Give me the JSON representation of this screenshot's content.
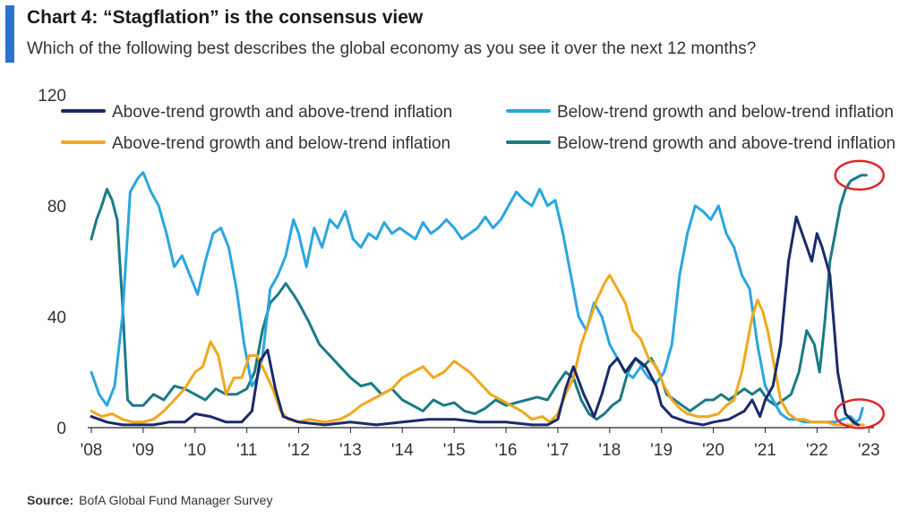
{
  "header": {
    "title": "Chart 4: “Stagflation” is the consensus view",
    "subtitle": "Which of the following best describes the global economy as you see it over the next 12 months?",
    "accent_color": "#2e6fd0"
  },
  "source": {
    "label": "Source:",
    "text": "BofA Global Fund Manager Survey"
  },
  "chart_data": {
    "type": "line",
    "title": "",
    "xlabel": "",
    "ylabel": "",
    "xlim": [
      2008.0,
      2023.1
    ],
    "ylim": [
      0,
      120
    ],
    "y_ticks": [
      0,
      40,
      80,
      120
    ],
    "x_ticks": [
      2008,
      2009,
      2010,
      2011,
      2012,
      2013,
      2014,
      2015,
      2016,
      2017,
      2018,
      2019,
      2020,
      2021,
      2022,
      2023
    ],
    "x_tick_labels": [
      "'08",
      "'09",
      "'10",
      "'11",
      "'12",
      "'13",
      "'14",
      "'15",
      "'16",
      "'17",
      "'18",
      "'19",
      "'20",
      "'21",
      "'22",
      "'23"
    ],
    "grid": false,
    "legend_position": "top",
    "annotations": [
      {
        "type": "circle",
        "x": 2022.75,
        "y": 91
      },
      {
        "type": "circle",
        "x": 2022.75,
        "y": 5
      }
    ],
    "series": [
      {
        "name": "Above-trend growth and above-trend inflation",
        "color": "#1b2a6b",
        "x": [
          2008.0,
          2008.3,
          2008.6,
          2008.9,
          2009.2,
          2009.5,
          2009.8,
          2010.0,
          2010.3,
          2010.6,
          2010.9,
          2011.1,
          2011.25,
          2011.4,
          2011.55,
          2011.7,
          2012.0,
          2012.5,
          2013.0,
          2013.5,
          2014.0,
          2014.5,
          2015.0,
          2015.5,
          2016.0,
          2016.5,
          2016.8,
          2017.0,
          2017.15,
          2017.3,
          2017.5,
          2017.7,
          2017.85,
          2018.0,
          2018.15,
          2018.3,
          2018.5,
          2018.7,
          2018.9,
          2019.0,
          2019.2,
          2019.5,
          2019.8,
          2020.0,
          2020.3,
          2020.6,
          2020.75,
          2020.9,
          2021.0,
          2021.15,
          2021.3,
          2021.45,
          2021.6,
          2021.75,
          2021.9,
          2022.0,
          2022.1,
          2022.25,
          2022.4,
          2022.55,
          2022.7,
          2022.8
        ],
        "values": [
          4,
          2,
          1,
          1,
          1,
          2,
          2,
          5,
          4,
          2,
          2,
          6,
          24,
          28,
          14,
          4,
          2,
          1,
          2,
          1,
          2,
          3,
          3,
          2,
          2,
          1,
          1,
          3,
          14,
          22,
          12,
          4,
          12,
          22,
          25,
          20,
          25,
          22,
          15,
          8,
          4,
          2,
          1,
          2,
          3,
          6,
          10,
          4,
          10,
          15,
          30,
          60,
          76,
          68,
          60,
          70,
          65,
          55,
          20,
          5,
          2,
          1
        ]
      },
      {
        "name": "Below-trend growth and below-trend inflation",
        "color": "#2aa6e0",
        "x": [
          2008.0,
          2008.15,
          2008.3,
          2008.45,
          2008.6,
          2008.75,
          2008.9,
          2009.0,
          2009.15,
          2009.3,
          2009.45,
          2009.6,
          2009.75,
          2009.9,
          2010.05,
          2010.2,
          2010.35,
          2010.5,
          2010.65,
          2010.8,
          2010.95,
          2011.1,
          2011.2,
          2011.3,
          2011.45,
          2011.6,
          2011.75,
          2011.9,
          2012.0,
          2012.15,
          2012.3,
          2012.45,
          2012.6,
          2012.75,
          2012.9,
          2013.05,
          2013.2,
          2013.35,
          2013.5,
          2013.65,
          2013.8,
          2013.95,
          2014.1,
          2014.25,
          2014.4,
          2014.55,
          2014.7,
          2014.85,
          2015.0,
          2015.15,
          2015.3,
          2015.45,
          2015.6,
          2015.75,
          2015.9,
          2016.05,
          2016.2,
          2016.35,
          2016.5,
          2016.65,
          2016.8,
          2016.95,
          2017.1,
          2017.25,
          2017.4,
          2017.55,
          2017.7,
          2017.85,
          2018.0,
          2018.15,
          2018.3,
          2018.45,
          2018.6,
          2018.75,
          2018.9,
          2019.05,
          2019.2,
          2019.35,
          2019.5,
          2019.65,
          2019.8,
          2019.95,
          2020.1,
          2020.25,
          2020.4,
          2020.55,
          2020.7,
          2020.85,
          2021.0,
          2021.15,
          2021.3,
          2021.45,
          2021.6,
          2021.75,
          2021.9,
          2022.05,
          2022.2,
          2022.35,
          2022.5,
          2022.65,
          2022.75,
          2022.82,
          2022.88
        ],
        "values": [
          20,
          12,
          8,
          15,
          40,
          85,
          90,
          92,
          85,
          80,
          70,
          58,
          62,
          55,
          48,
          60,
          70,
          72,
          65,
          50,
          30,
          15,
          18,
          25,
          50,
          55,
          62,
          75,
          70,
          58,
          72,
          65,
          75,
          72,
          78,
          68,
          65,
          70,
          68,
          74,
          70,
          72,
          70,
          68,
          74,
          70,
          72,
          75,
          72,
          68,
          70,
          72,
          76,
          72,
          75,
          80,
          85,
          82,
          80,
          86,
          80,
          82,
          70,
          55,
          40,
          35,
          45,
          40,
          30,
          25,
          20,
          18,
          22,
          18,
          16,
          20,
          30,
          55,
          70,
          80,
          78,
          75,
          80,
          70,
          65,
          55,
          50,
          30,
          15,
          10,
          5,
          3,
          3,
          2,
          2,
          2,
          2,
          2,
          3,
          4,
          2,
          3,
          7
        ]
      },
      {
        "name": "Above-trend growth and below-trend inflation",
        "color": "#f0a81c",
        "x": [
          2008.0,
          2008.2,
          2008.4,
          2008.6,
          2008.8,
          2009.0,
          2009.2,
          2009.4,
          2009.6,
          2009.8,
          2010.0,
          2010.15,
          2010.3,
          2010.45,
          2010.6,
          2010.75,
          2010.9,
          2011.05,
          2011.2,
          2011.35,
          2011.5,
          2011.65,
          2011.8,
          2012.0,
          2012.2,
          2012.5,
          2012.8,
          2013.0,
          2013.2,
          2013.4,
          2013.6,
          2013.8,
          2014.0,
          2014.2,
          2014.4,
          2014.6,
          2014.8,
          2015.0,
          2015.15,
          2015.3,
          2015.5,
          2015.7,
          2015.9,
          2016.1,
          2016.3,
          2016.5,
          2016.7,
          2016.85,
          2017.0,
          2017.15,
          2017.3,
          2017.45,
          2017.6,
          2017.75,
          2017.9,
          2018.0,
          2018.15,
          2018.3,
          2018.45,
          2018.6,
          2018.75,
          2018.9,
          2019.05,
          2019.2,
          2019.35,
          2019.5,
          2019.7,
          2019.9,
          2020.1,
          2020.25,
          2020.4,
          2020.55,
          2020.65,
          2020.75,
          2020.85,
          2020.95,
          2021.05,
          2021.15,
          2021.3,
          2021.45,
          2021.6,
          2021.75,
          2021.9,
          2022.05,
          2022.2,
          2022.35,
          2022.5,
          2022.65,
          2022.8,
          2022.9
        ],
        "values": [
          6,
          4,
          5,
          3,
          2,
          2,
          3,
          6,
          10,
          14,
          20,
          22,
          31,
          26,
          12,
          18,
          18,
          26,
          26,
          20,
          14,
          6,
          3,
          2,
          3,
          2,
          3,
          5,
          8,
          10,
          12,
          14,
          18,
          20,
          22,
          18,
          20,
          24,
          22,
          20,
          16,
          12,
          10,
          8,
          6,
          3,
          4,
          2,
          5,
          12,
          18,
          30,
          38,
          46,
          52,
          55,
          50,
          45,
          35,
          32,
          25,
          22,
          15,
          10,
          7,
          5,
          4,
          4,
          5,
          8,
          10,
          20,
          30,
          40,
          46,
          42,
          35,
          25,
          10,
          5,
          3,
          3,
          2,
          2,
          2,
          1,
          1,
          1,
          1,
          1
        ]
      },
      {
        "name": "Below-trend growth and above-trend inflation",
        "color": "#1b7a84",
        "x": [
          2008.0,
          2008.1,
          2008.2,
          2008.3,
          2008.4,
          2008.5,
          2008.6,
          2008.7,
          2008.8,
          2009.0,
          2009.2,
          2009.4,
          2009.6,
          2009.8,
          2010.0,
          2010.2,
          2010.4,
          2010.6,
          2010.8,
          2011.0,
          2011.15,
          2011.3,
          2011.45,
          2011.6,
          2011.75,
          2011.9,
          2012.0,
          2012.2,
          2012.4,
          2012.6,
          2012.8,
          2013.0,
          2013.2,
          2013.4,
          2013.6,
          2013.8,
          2014.0,
          2014.2,
          2014.4,
          2014.6,
          2014.8,
          2015.0,
          2015.2,
          2015.4,
          2015.6,
          2015.8,
          2016.0,
          2016.2,
          2016.4,
          2016.6,
          2016.8,
          2017.0,
          2017.15,
          2017.3,
          2017.45,
          2017.6,
          2017.75,
          2017.9,
          2018.05,
          2018.2,
          2018.35,
          2018.5,
          2018.65,
          2018.8,
          2018.95,
          2019.1,
          2019.25,
          2019.4,
          2019.55,
          2019.7,
          2019.85,
          2020.0,
          2020.15,
          2020.3,
          2020.45,
          2020.6,
          2020.75,
          2020.9,
          2021.05,
          2021.2,
          2021.35,
          2021.5,
          2021.65,
          2021.8,
          2021.95,
          2022.05,
          2022.15,
          2022.25,
          2022.35,
          2022.45,
          2022.55,
          2022.65,
          2022.75,
          2022.85,
          2022.95
        ],
        "values": [
          68,
          75,
          80,
          86,
          82,
          75,
          45,
          10,
          8,
          8,
          12,
          10,
          15,
          14,
          12,
          10,
          14,
          12,
          12,
          14,
          20,
          35,
          45,
          48,
          52,
          48,
          45,
          38,
          30,
          26,
          22,
          18,
          15,
          16,
          12,
          14,
          10,
          8,
          6,
          10,
          8,
          9,
          6,
          5,
          7,
          10,
          8,
          9,
          10,
          11,
          10,
          16,
          20,
          18,
          10,
          5,
          3,
          5,
          8,
          10,
          20,
          25,
          22,
          25,
          20,
          12,
          10,
          8,
          6,
          8,
          10,
          10,
          12,
          10,
          12,
          14,
          12,
          14,
          10,
          8,
          10,
          12,
          20,
          35,
          30,
          20,
          38,
          60,
          70,
          80,
          86,
          89,
          90,
          91,
          91
        ]
      }
    ]
  }
}
